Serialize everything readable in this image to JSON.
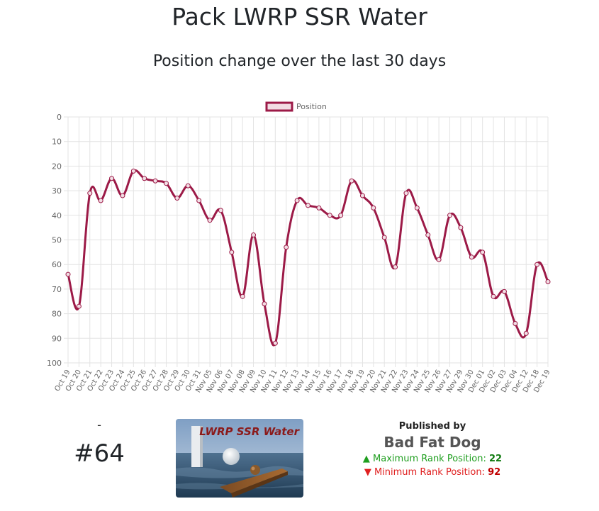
{
  "header": {
    "title": "Pack LWRP SSR Water",
    "subtitle": "Position change over the last 30 days"
  },
  "chart_data": {
    "type": "line",
    "legend": {
      "label": "Position",
      "placement": "top-center"
    },
    "series_color": "#9c1a47",
    "point_fill": "#f2dde4",
    "y_reversed": true,
    "ylim": [
      0,
      100
    ],
    "yticks": [
      0,
      10,
      20,
      30,
      40,
      50,
      60,
      70,
      80,
      90,
      100
    ],
    "grid": true,
    "categories": [
      "Oct 19",
      "Oct 20",
      "Oct 21",
      "Oct 22",
      "Oct 23",
      "Oct 24",
      "Oct 25",
      "Oct 26",
      "Oct 27",
      "Oct 28",
      "Oct 29",
      "Oct 30",
      "Oct 31",
      "Nov 05",
      "Nov 06",
      "Nov 07",
      "Nov 08",
      "Nov 09",
      "Nov 10",
      "Nov 11",
      "Nov 12",
      "Nov 13",
      "Nov 14",
      "Nov 15",
      "Nov 16",
      "Nov 17",
      "Nov 18",
      "Nov 19",
      "Nov 20",
      "Nov 21",
      "Nov 22",
      "Nov 23",
      "Nov 24",
      "Nov 25",
      "Nov 26",
      "Nov 27",
      "Nov 29",
      "Nov 30",
      "Dec 01",
      "Dec 02",
      "Dec 03",
      "Dec 04",
      "Dec 12",
      "Dec 18",
      "Dec 19"
    ],
    "values": [
      64,
      77,
      31,
      34,
      25,
      32,
      22,
      25,
      26,
      27,
      33,
      28,
      34,
      42,
      38,
      55,
      73,
      48,
      76,
      92,
      53,
      34,
      36,
      37,
      40,
      40,
      26,
      32,
      37,
      49,
      61,
      31,
      37,
      48,
      58,
      40,
      45,
      57,
      55,
      73,
      71,
      84,
      88,
      60,
      67
    ]
  },
  "rank": {
    "dash": "-",
    "value": "#64"
  },
  "thumbnail": {
    "title": "LWRP SSR Water"
  },
  "publisher": {
    "label": "Published by",
    "name": "Bad Fat Dog",
    "max_label": "Maximum Rank Position:",
    "max_value": "22",
    "min_label": "Minimum Rank Position:",
    "min_value": "92"
  }
}
